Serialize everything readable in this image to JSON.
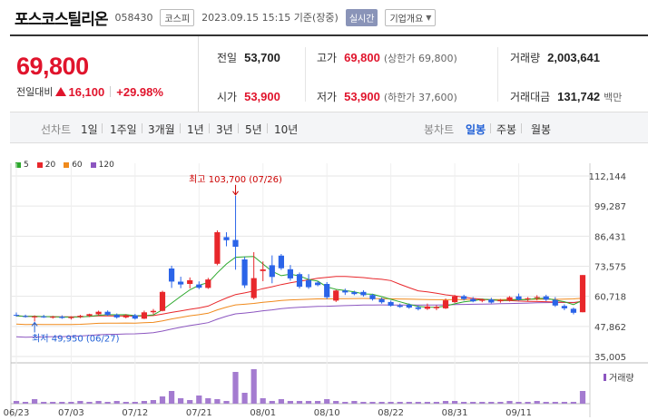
{
  "header": {
    "name": "포스코스틸리온",
    "code": "058430",
    "market": "코스피",
    "datetime": "2023.09.15 15:15",
    "basis": "기준(장중)",
    "realtime": "실시간",
    "company_info": "기업개요"
  },
  "price": {
    "current": "69,800",
    "change_label": "전일대비",
    "change": "16,100",
    "change_rate": "+29.98%"
  },
  "stats": {
    "prev_label": "전일",
    "prev": "53,700",
    "high_label": "고가",
    "high": "69,800",
    "upper_limit": "(상한가 69,800)",
    "volume_label": "거래량",
    "volume": "2,003,641",
    "open_label": "시가",
    "open": "53,900",
    "low_label": "저가",
    "low": "53,900",
    "lower_limit": "(하한가 37,600)",
    "amount_label": "거래대금",
    "amount": "131,742",
    "amount_unit": "백만"
  },
  "toolbar": {
    "line_label": "선차트",
    "periods": [
      "1일",
      "1주일",
      "3개월",
      "1년",
      "3년",
      "5년",
      "10년"
    ],
    "candle_label": "봉차트",
    "candles": [
      "일봉",
      "주봉",
      "월봉"
    ],
    "active_candle": "일봉"
  },
  "chart_data": {
    "type": "candlestick",
    "legend": [
      {
        "name": "5",
        "color": "#2ca82c"
      },
      {
        "name": "20",
        "color": "#e8272b"
      },
      {
        "name": "60",
        "color": "#f08a1c"
      },
      {
        "name": "120",
        "color": "#8c56c0"
      }
    ],
    "y_ticks": [
      35005,
      47862,
      60718,
      73575,
      86431,
      99287,
      112144
    ],
    "y_tick_labels": [
      "35,005",
      "47,862",
      "60,718",
      "73,575",
      "86,431",
      "99,287",
      "112,144"
    ],
    "ylim": [
      35005,
      112144
    ],
    "x_labels": [
      "06/23",
      "07/03",
      "07/12",
      "07/21",
      "08/01",
      "08/10",
      "08/22",
      "08/31",
      "09/11"
    ],
    "x_label_index": [
      0,
      6,
      13,
      20,
      27,
      34,
      41,
      48,
      55
    ],
    "annotation_high": "최고 103,700 (07/26)",
    "annotation_low": "최저 49,950 (06/27)",
    "volume_label": "거래량",
    "candles": [
      {
        "o": 52800,
        "h": 53800,
        "l": 52000,
        "c": 52400
      },
      {
        "o": 52300,
        "h": 52900,
        "l": 51600,
        "c": 51900
      },
      {
        "o": 51900,
        "h": 52600,
        "l": 49950,
        "c": 52100
      },
      {
        "o": 52100,
        "h": 52800,
        "l": 51500,
        "c": 51800
      },
      {
        "o": 51800,
        "h": 52400,
        "l": 51200,
        "c": 52000
      },
      {
        "o": 52000,
        "h": 52600,
        "l": 51100,
        "c": 51500
      },
      {
        "o": 51400,
        "h": 52200,
        "l": 50800,
        "c": 51900
      },
      {
        "o": 51900,
        "h": 52800,
        "l": 51400,
        "c": 52400
      },
      {
        "o": 52400,
        "h": 53300,
        "l": 51900,
        "c": 53100
      },
      {
        "o": 53000,
        "h": 54600,
        "l": 52600,
        "c": 54100
      },
      {
        "o": 54100,
        "h": 54700,
        "l": 52400,
        "c": 52800
      },
      {
        "o": 52800,
        "h": 53400,
        "l": 51200,
        "c": 51700
      },
      {
        "o": 51700,
        "h": 53100,
        "l": 51300,
        "c": 52600
      },
      {
        "o": 52600,
        "h": 53200,
        "l": 50800,
        "c": 51200
      },
      {
        "o": 51200,
        "h": 54600,
        "l": 51000,
        "c": 53900
      },
      {
        "o": 53900,
        "h": 55300,
        "l": 53100,
        "c": 54500
      },
      {
        "o": 54500,
        "h": 63100,
        "l": 54300,
        "c": 62600
      },
      {
        "o": 72600,
        "h": 73800,
        "l": 64300,
        "c": 67000
      },
      {
        "o": 67000,
        "h": 69100,
        "l": 64200,
        "c": 65800
      },
      {
        "o": 66000,
        "h": 68800,
        "l": 64100,
        "c": 67600
      },
      {
        "o": 65800,
        "h": 67100,
        "l": 63800,
        "c": 64400
      },
      {
        "o": 64300,
        "h": 68600,
        "l": 63900,
        "c": 67900
      },
      {
        "o": 74600,
        "h": 88900,
        "l": 74000,
        "c": 88100
      },
      {
        "o": 86000,
        "h": 88100,
        "l": 82100,
        "c": 84700
      },
      {
        "o": 84800,
        "h": 103700,
        "l": 72100,
        "c": 81900
      },
      {
        "o": 76500,
        "h": 77600,
        "l": 64300,
        "c": 65400
      },
      {
        "o": 60000,
        "h": 79600,
        "l": 59400,
        "c": 68500
      },
      {
        "o": 71500,
        "h": 75600,
        "l": 67200,
        "c": 72200
      },
      {
        "o": 74000,
        "h": 78200,
        "l": 66300,
        "c": 69000
      },
      {
        "o": 78100,
        "h": 78800,
        "l": 72000,
        "c": 72700
      },
      {
        "o": 72300,
        "h": 74100,
        "l": 67400,
        "c": 68400
      },
      {
        "o": 70200,
        "h": 70900,
        "l": 64100,
        "c": 64800
      },
      {
        "o": 67600,
        "h": 70200,
        "l": 63900,
        "c": 64600
      },
      {
        "o": 66600,
        "h": 67200,
        "l": 65000,
        "c": 65500
      },
      {
        "o": 66000,
        "h": 66800,
        "l": 59600,
        "c": 60300
      },
      {
        "o": 58900,
        "h": 63500,
        "l": 58300,
        "c": 63200
      },
      {
        "o": 63200,
        "h": 64000,
        "l": 61300,
        "c": 62400
      },
      {
        "o": 62500,
        "h": 63100,
        "l": 61200,
        "c": 61700
      },
      {
        "o": 62600,
        "h": 63300,
        "l": 60600,
        "c": 61200
      },
      {
        "o": 61300,
        "h": 61800,
        "l": 58900,
        "c": 59500
      },
      {
        "o": 59600,
        "h": 60200,
        "l": 57600,
        "c": 58200
      },
      {
        "o": 58300,
        "h": 58900,
        "l": 56300,
        "c": 56700
      },
      {
        "o": 56800,
        "h": 57600,
        "l": 55800,
        "c": 56200
      },
      {
        "o": 57100,
        "h": 57700,
        "l": 55400,
        "c": 55900
      },
      {
        "o": 56000,
        "h": 56800,
        "l": 54700,
        "c": 55300
      },
      {
        "o": 55400,
        "h": 57600,
        "l": 54900,
        "c": 56400
      },
      {
        "o": 55600,
        "h": 56900,
        "l": 54800,
        "c": 56200
      },
      {
        "o": 55600,
        "h": 59800,
        "l": 55300,
        "c": 59000
      },
      {
        "o": 58200,
        "h": 61300,
        "l": 57900,
        "c": 60700
      },
      {
        "o": 60800,
        "h": 61400,
        "l": 58900,
        "c": 59600
      },
      {
        "o": 59600,
        "h": 60400,
        "l": 58200,
        "c": 58600
      },
      {
        "o": 58800,
        "h": 59700,
        "l": 58200,
        "c": 59400
      },
      {
        "o": 59400,
        "h": 60100,
        "l": 57700,
        "c": 58100
      },
      {
        "o": 58600,
        "h": 59600,
        "l": 58000,
        "c": 59100
      },
      {
        "o": 59000,
        "h": 60800,
        "l": 58500,
        "c": 60300
      },
      {
        "o": 60700,
        "h": 61900,
        "l": 58900,
        "c": 59300
      },
      {
        "o": 59500,
        "h": 60400,
        "l": 58700,
        "c": 59900
      },
      {
        "o": 60000,
        "h": 61200,
        "l": 59000,
        "c": 60400
      },
      {
        "o": 60700,
        "h": 61400,
        "l": 58700,
        "c": 59300
      },
      {
        "o": 59200,
        "h": 60400,
        "l": 56200,
        "c": 56800
      },
      {
        "o": 56600,
        "h": 57300,
        "l": 54800,
        "c": 55600
      },
      {
        "o": 55400,
        "h": 55900,
        "l": 53000,
        "c": 53700
      },
      {
        "o": 53900,
        "h": 69800,
        "l": 53900,
        "c": 69800
      }
    ],
    "volumes": [
      3,
      2,
      5,
      2,
      2,
      2,
      2,
      3,
      2,
      3,
      2,
      3,
      2,
      2,
      3,
      4,
      8,
      14,
      6,
      4,
      9,
      6,
      5,
      3,
      35,
      12,
      38,
      6,
      3,
      5,
      3,
      3,
      3,
      3,
      5,
      3,
      2,
      3,
      2,
      2,
      2,
      2,
      2,
      2,
      2,
      2,
      2,
      3,
      3,
      2,
      2,
      2,
      2,
      2,
      3,
      2,
      2,
      3,
      2,
      2,
      2,
      2,
      14
    ]
  }
}
